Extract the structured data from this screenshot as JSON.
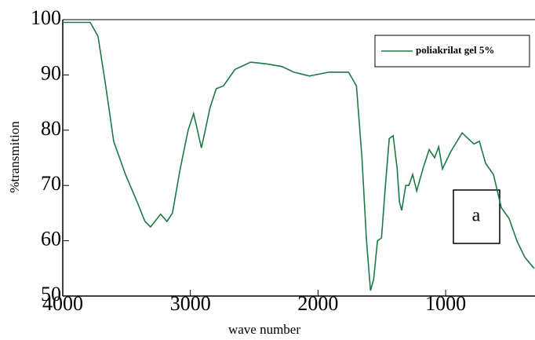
{
  "chart_data": {
    "type": "line",
    "x_label": "wave number",
    "y_label": "%transmition",
    "annotation": "a",
    "x": [
      4000,
      3785,
      3724,
      3663,
      3601,
      3509,
      3417,
      3356,
      3313,
      3233,
      3184,
      3141,
      3080,
      3018,
      2975,
      2945,
      2914,
      2883,
      2847,
      2798,
      2742,
      2650,
      2528,
      2405,
      2282,
      2190,
      2067,
      1914,
      1761,
      1699,
      1656,
      1620,
      1589,
      1564,
      1534,
      1503,
      1472,
      1442,
      1411,
      1380,
      1362,
      1344,
      1313,
      1288,
      1258,
      1227,
      1178,
      1129,
      1086,
      1055,
      1025,
      963,
      871,
      779,
      736,
      687,
      626,
      564,
      503,
      442,
      380,
      307
    ],
    "series": [
      {
        "name": "poliakrilat gel 5%",
        "color": "#1c7a45",
        "values": [
          99.5,
          99.5,
          97,
          88,
          78,
          72,
          67,
          63.5,
          62.5,
          64.8,
          63.5,
          65,
          73,
          80,
          83,
          80,
          76.8,
          80,
          84,
          87.5,
          88,
          91,
          92.3,
          92,
          91.5,
          90.5,
          89.8,
          90.5,
          90.5,
          88,
          75,
          60,
          51,
          53,
          60,
          60.5,
          70,
          78.5,
          79,
          73,
          67,
          65.5,
          70,
          70,
          72,
          69,
          73,
          76.5,
          75,
          77,
          73,
          76,
          79.5,
          77.5,
          78,
          74,
          72,
          66,
          64,
          60,
          57,
          55
        ]
      }
    ],
    "xlim": [
      4000,
      300
    ],
    "ylim": [
      50,
      100
    ],
    "xticks": [
      4000,
      3000,
      2000,
      1000
    ],
    "yticks": [
      50,
      60,
      70,
      80,
      90,
      100
    ],
    "legend": "top-right"
  }
}
